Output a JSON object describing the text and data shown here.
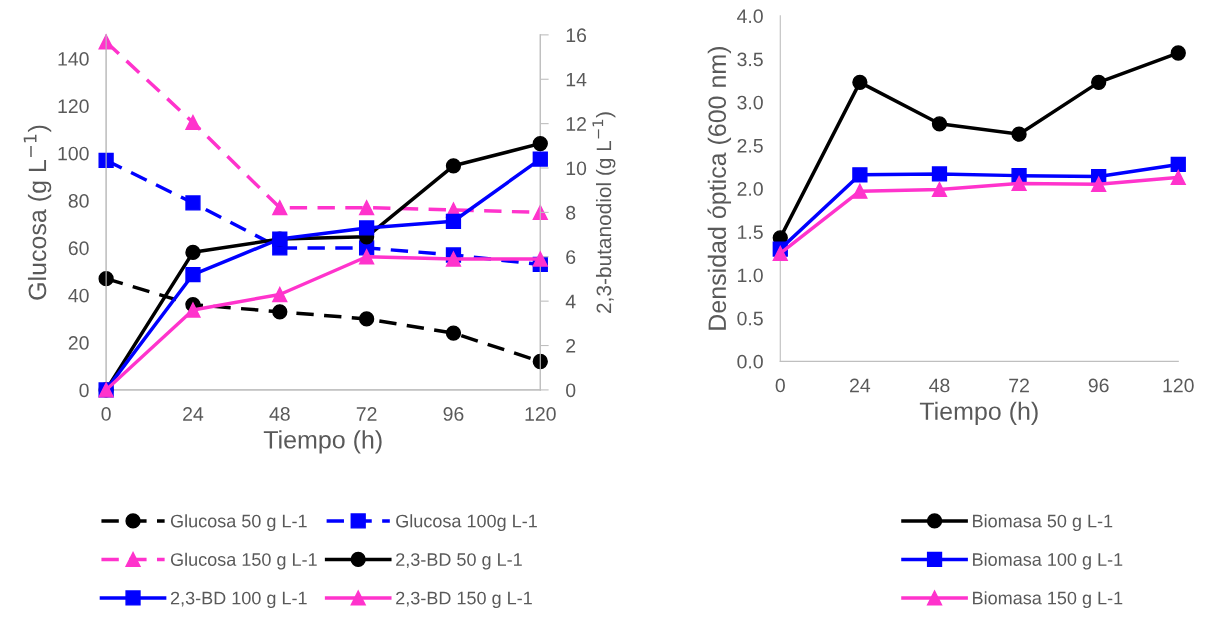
{
  "chart_data": [
    {
      "type": "line",
      "xlabel": "Tiempo (h)",
      "ylabel": "Glucosa (g L$^{−1}$)",
      "y2label": "2,3-butanodiol (g L$^{−1}$)",
      "x": [
        0,
        24,
        48,
        72,
        96,
        120
      ],
      "xlim": [
        0,
        120
      ],
      "xticks": [
        0,
        24,
        48,
        72,
        96,
        120
      ],
      "ylim": [
        0,
        150
      ],
      "yticks": [
        0,
        20,
        40,
        60,
        80,
        100,
        120,
        140
      ],
      "y2lim": [
        0,
        16
      ],
      "y2ticks": [
        0,
        2,
        4,
        6,
        8,
        10,
        12,
        14,
        16
      ],
      "grid": false,
      "legend": "bottom",
      "series": [
        {
          "name": "Glucosa 50 g L-1",
          "color": "#000000",
          "marker": "circle",
          "line_style": "dashed",
          "values": [
            47,
            36,
            33,
            30,
            24,
            12
          ]
        },
        {
          "name": "Glucosa 100g L-1",
          "color": "#0000ff",
          "marker": "square",
          "line_style": "dashed",
          "values": [
            97,
            79,
            60,
            60,
            57,
            53
          ]
        },
        {
          "name": "Glucosa 150 g L-1",
          "color": "#ff33cc",
          "marker": "triangle",
          "line_style": "dashed",
          "values": [
            147,
            113,
            77,
            77,
            76,
            75
          ]
        },
        {
          "name": "2,3-BD 50 g L-1",
          "color": "#000000",
          "marker": "circle",
          "line_style": "solid",
          "axis": "y2",
          "values": [
            0,
            6.2,
            6.8,
            6.9,
            10.1,
            11.1
          ]
        },
        {
          "name": "2,3-BD 100 g L-1",
          "color": "#0000ff",
          "marker": "square",
          "line_style": "solid",
          "axis": "y2",
          "values": [
            0,
            5.2,
            6.8,
            7.3,
            7.6,
            10.4
          ]
        },
        {
          "name": "2,3-BD 150 g L-1",
          "color": "#ff33cc",
          "marker": "triangle",
          "line_style": "solid",
          "axis": "y2",
          "values": [
            0,
            3.6,
            4.3,
            6.0,
            5.9,
            5.9
          ]
        }
      ]
    },
    {
      "type": "line",
      "xlabel": "Tiempo (h)",
      "ylabel": "Densidad óptica (600 nm)",
      "x": [
        0,
        24,
        48,
        72,
        96,
        120
      ],
      "xlim": [
        0,
        120
      ],
      "xticks": [
        0,
        24,
        48,
        72,
        96,
        120
      ],
      "ylim": [
        0,
        4
      ],
      "yticks": [
        {
          "value": 0,
          "label": "0.0"
        },
        {
          "value": 0.5,
          "label": "0.5"
        },
        {
          "value": 1,
          "label": "1.0"
        },
        {
          "value": 1.5,
          "label": "1.5"
        },
        {
          "value": 2,
          "label": "2.0"
        },
        {
          "value": 2.5,
          "label": "2.5"
        },
        {
          "value": 3,
          "label": "3.0"
        },
        {
          "value": 3.5,
          "label": "3.5"
        },
        {
          "value": 4,
          "label": "4.0"
        }
      ],
      "grid": false,
      "legend": "bottom",
      "series": [
        {
          "name": "Biomasa 50 g L-1",
          "color": "#000000",
          "marker": "circle",
          "line_style": "solid",
          "values": [
            1.43,
            3.23,
            2.75,
            2.63,
            3.23,
            3.57
          ]
        },
        {
          "name": "Biomasa 100 g L-1",
          "color": "#0000ff",
          "marker": "square",
          "line_style": "solid",
          "values": [
            1.3,
            2.16,
            2.17,
            2.15,
            2.14,
            2.28
          ]
        },
        {
          "name": "Biomasa 150 g L-1",
          "color": "#ff33cc",
          "marker": "triangle",
          "line_style": "solid",
          "values": [
            1.25,
            1.97,
            1.99,
            2.06,
            2.05,
            2.13
          ]
        }
      ]
    }
  ]
}
